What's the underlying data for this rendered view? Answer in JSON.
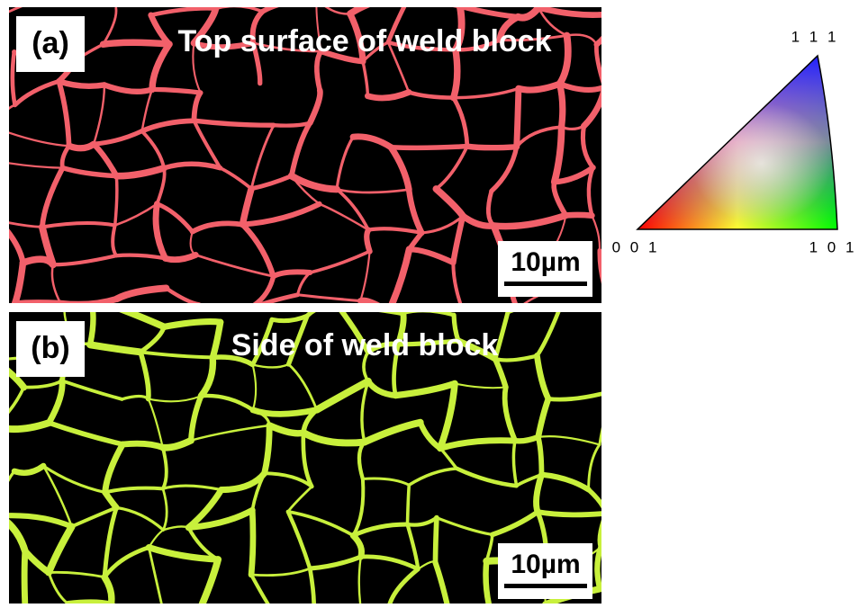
{
  "panels": [
    {
      "label": "(a)",
      "title": "Top surface of weld block",
      "scale_bar": "10µm"
    },
    {
      "label": "(b)",
      "title": "Side of weld block",
      "scale_bar": "10µm"
    }
  ],
  "legend": {
    "top": "1 1 1",
    "bottom_left": "0 0 1",
    "bottom_right": "1 0 1"
  }
}
